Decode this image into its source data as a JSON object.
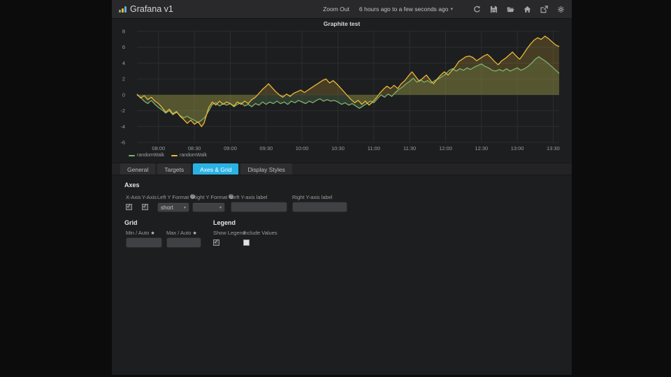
{
  "navbar": {
    "brand": "Grafana v1",
    "zoom_out_label": "Zoom Out",
    "time_range_label": "6 hours ago to a few seconds ago",
    "caret": "▾"
  },
  "panel": {
    "title": "Graphite test"
  },
  "chart_data": {
    "type": "line",
    "title": "Graphite test",
    "grid": true,
    "x_axis": {
      "tick_labels": [
        "08:00",
        "08:30",
        "09:00",
        "09:30",
        "10:00",
        "10:30",
        "11:00",
        "11:30",
        "12:00",
        "12:30",
        "13:00",
        "13:30"
      ],
      "tick_minutes": [
        18,
        48,
        78,
        108,
        138,
        168,
        198,
        228,
        258,
        288,
        318,
        348
      ],
      "range_minutes": [
        0,
        353
      ]
    },
    "y_axis": {
      "ticks": [
        8,
        6,
        4,
        2,
        0,
        -2,
        -4,
        -6
      ],
      "min": -6,
      "max": 8
    },
    "legend": {
      "position": "bottom-left",
      "entries": [
        "randomWalk",
        "randomWalk"
      ]
    },
    "series": [
      {
        "name": "randomWalk",
        "color": "#7eb26d",
        "fill": "rgba(126,178,109,0.2)",
        "points": [
          [
            0,
            0
          ],
          [
            3,
            -0.3
          ],
          [
            6,
            -0.8
          ],
          [
            9,
            -1.1
          ],
          [
            12,
            -0.7
          ],
          [
            15,
            -1.2
          ],
          [
            18,
            -1.6
          ],
          [
            21,
            -1.9
          ],
          [
            24,
            -2.3
          ],
          [
            27,
            -2.0
          ],
          [
            30,
            -2.5
          ],
          [
            33,
            -2.2
          ],
          [
            36,
            -2.6
          ],
          [
            39,
            -2.9
          ],
          [
            42,
            -2.7
          ],
          [
            45,
            -3.0
          ],
          [
            48,
            -3.2
          ],
          [
            51,
            -3.5
          ],
          [
            54,
            -3.2
          ],
          [
            57,
            -2.8
          ],
          [
            60,
            -2.0
          ],
          [
            63,
            -1.2
          ],
          [
            66,
            -1.0
          ],
          [
            69,
            -1.4
          ],
          [
            72,
            -1.1
          ],
          [
            75,
            -1.3
          ],
          [
            78,
            -1.1
          ],
          [
            81,
            -1.5
          ],
          [
            84,
            -1.2
          ],
          [
            87,
            -1.0
          ],
          [
            90,
            -1.4
          ],
          [
            93,
            -1.2
          ],
          [
            96,
            -1.5
          ],
          [
            99,
            -1.1
          ],
          [
            102,
            -1.3
          ],
          [
            105,
            -0.9
          ],
          [
            108,
            -1.2
          ],
          [
            111,
            -0.9
          ],
          [
            114,
            -1.1
          ],
          [
            117,
            -0.8
          ],
          [
            120,
            -1.1
          ],
          [
            123,
            -0.9
          ],
          [
            126,
            -1.2
          ],
          [
            129,
            -0.8
          ],
          [
            132,
            -1.0
          ],
          [
            135,
            -0.7
          ],
          [
            138,
            -0.9
          ],
          [
            141,
            -1.1
          ],
          [
            144,
            -0.8
          ],
          [
            147,
            -1.0
          ],
          [
            150,
            -0.7
          ],
          [
            153,
            -0.5
          ],
          [
            156,
            -0.8
          ],
          [
            159,
            -0.6
          ],
          [
            162,
            -0.8
          ],
          [
            165,
            -0.7
          ],
          [
            168,
            -0.9
          ],
          [
            171,
            -1.2
          ],
          [
            174,
            -1.0
          ],
          [
            177,
            -1.3
          ],
          [
            180,
            -1.1
          ],
          [
            183,
            -1.4
          ],
          [
            186,
            -1.7
          ],
          [
            189,
            -1.4
          ],
          [
            192,
            -1.1
          ],
          [
            195,
            -0.8
          ],
          [
            198,
            -1.0
          ],
          [
            201,
            -0.5
          ],
          [
            204,
            0.0
          ],
          [
            207,
            -0.3
          ],
          [
            210,
            0.1
          ],
          [
            213,
            -0.2
          ],
          [
            216,
            0.3
          ],
          [
            219,
            0.7
          ],
          [
            222,
            1.0
          ],
          [
            225,
            1.4
          ],
          [
            228,
            1.7
          ],
          [
            231,
            2.1
          ],
          [
            234,
            1.6
          ],
          [
            237,
            1.9
          ],
          [
            240,
            1.6
          ],
          [
            243,
            1.8
          ],
          [
            246,
            1.5
          ],
          [
            249,
            1.8
          ],
          [
            252,
            2.0
          ],
          [
            255,
            2.3
          ],
          [
            258,
            2.6
          ],
          [
            261,
            3.1
          ],
          [
            264,
            3.3
          ],
          [
            267,
            3.0
          ],
          [
            270,
            3.3
          ],
          [
            273,
            3.1
          ],
          [
            276,
            3.4
          ],
          [
            279,
            3.2
          ],
          [
            282,
            3.5
          ],
          [
            285,
            3.7
          ],
          [
            288,
            3.9
          ],
          [
            291,
            3.6
          ],
          [
            294,
            3.4
          ],
          [
            297,
            3.1
          ],
          [
            300,
            3.0
          ],
          [
            303,
            3.2
          ],
          [
            306,
            3.0
          ],
          [
            309,
            3.3
          ],
          [
            312,
            3.0
          ],
          [
            315,
            3.2
          ],
          [
            318,
            3.4
          ],
          [
            321,
            3.1
          ],
          [
            324,
            3.3
          ],
          [
            327,
            3.6
          ],
          [
            330,
            4.0
          ],
          [
            333,
            4.5
          ],
          [
            336,
            4.8
          ],
          [
            339,
            4.5
          ],
          [
            342,
            4.2
          ],
          [
            345,
            3.8
          ],
          [
            348,
            3.4
          ],
          [
            351,
            3.0
          ],
          [
            353,
            2.7
          ]
        ]
      },
      {
        "name": "randomWalk",
        "color": "#eab839",
        "fill": "rgba(234,184,57,0.2)",
        "points": [
          [
            0,
            0.1
          ],
          [
            3,
            -0.4
          ],
          [
            6,
            -0.1
          ],
          [
            9,
            -0.6
          ],
          [
            12,
            -0.3
          ],
          [
            15,
            -0.8
          ],
          [
            18,
            -1.1
          ],
          [
            21,
            -1.6
          ],
          [
            24,
            -2.2
          ],
          [
            27,
            -1.8
          ],
          [
            30,
            -2.4
          ],
          [
            33,
            -2.1
          ],
          [
            36,
            -2.7
          ],
          [
            39,
            -3.1
          ],
          [
            42,
            -3.6
          ],
          [
            45,
            -3.2
          ],
          [
            48,
            -3.7
          ],
          [
            51,
            -3.4
          ],
          [
            54,
            -4.0
          ],
          [
            56,
            -3.6
          ],
          [
            58,
            -2.6
          ],
          [
            60,
            -1.6
          ],
          [
            63,
            -0.9
          ],
          [
            66,
            -1.3
          ],
          [
            69,
            -0.8
          ],
          [
            72,
            -1.2
          ],
          [
            75,
            -0.9
          ],
          [
            78,
            -1.1
          ],
          [
            81,
            -1.4
          ],
          [
            84,
            -0.9
          ],
          [
            87,
            -1.2
          ],
          [
            90,
            -0.8
          ],
          [
            93,
            -1.1
          ],
          [
            96,
            -0.6
          ],
          [
            99,
            -0.3
          ],
          [
            102,
            0.2
          ],
          [
            105,
            0.7
          ],
          [
            108,
            1.1
          ],
          [
            110,
            1.4
          ],
          [
            113,
            0.9
          ],
          [
            116,
            0.4
          ],
          [
            119,
            0.0
          ],
          [
            122,
            -0.3
          ],
          [
            125,
            0.1
          ],
          [
            128,
            -0.2
          ],
          [
            131,
            0.2
          ],
          [
            134,
            0.4
          ],
          [
            137,
            0.6
          ],
          [
            140,
            0.3
          ],
          [
            143,
            0.6
          ],
          [
            146,
            0.9
          ],
          [
            149,
            1.2
          ],
          [
            152,
            1.5
          ],
          [
            155,
            1.8
          ],
          [
            158,
            2.0
          ],
          [
            161,
            1.5
          ],
          [
            164,
            1.8
          ],
          [
            167,
            1.4
          ],
          [
            170,
            0.9
          ],
          [
            173,
            0.4
          ],
          [
            176,
            -0.1
          ],
          [
            179,
            -0.6
          ],
          [
            182,
            -1.0
          ],
          [
            185,
            -0.7
          ],
          [
            188,
            -1.2
          ],
          [
            191,
            -0.8
          ],
          [
            194,
            -1.3
          ],
          [
            197,
            -0.9
          ],
          [
            200,
            -0.4
          ],
          [
            203,
            0.2
          ],
          [
            206,
            0.7
          ],
          [
            209,
            1.1
          ],
          [
            212,
            0.8
          ],
          [
            215,
            1.2
          ],
          [
            218,
            0.8
          ],
          [
            221,
            1.4
          ],
          [
            224,
            1.8
          ],
          [
            227,
            2.4
          ],
          [
            230,
            2.9
          ],
          [
            233,
            2.3
          ],
          [
            236,
            1.7
          ],
          [
            239,
            2.1
          ],
          [
            242,
            2.5
          ],
          [
            245,
            1.9
          ],
          [
            248,
            1.4
          ],
          [
            251,
            2.0
          ],
          [
            254,
            2.5
          ],
          [
            257,
            2.9
          ],
          [
            260,
            2.5
          ],
          [
            263,
            3.0
          ],
          [
            266,
            3.5
          ],
          [
            269,
            4.2
          ],
          [
            272,
            4.5
          ],
          [
            275,
            4.8
          ],
          [
            278,
            4.9
          ],
          [
            281,
            4.7
          ],
          [
            284,
            4.3
          ],
          [
            287,
            4.6
          ],
          [
            290,
            4.9
          ],
          [
            293,
            5.1
          ],
          [
            296,
            4.7
          ],
          [
            299,
            4.2
          ],
          [
            302,
            3.8
          ],
          [
            305,
            4.3
          ],
          [
            308,
            4.6
          ],
          [
            311,
            5.0
          ],
          [
            314,
            5.4
          ],
          [
            317,
            4.9
          ],
          [
            320,
            4.5
          ],
          [
            323,
            5.1
          ],
          [
            326,
            5.8
          ],
          [
            329,
            6.4
          ],
          [
            332,
            6.9
          ],
          [
            335,
            7.2
          ],
          [
            338,
            7.0
          ],
          [
            341,
            7.4
          ],
          [
            344,
            7.1
          ],
          [
            347,
            6.7
          ],
          [
            350,
            6.3
          ],
          [
            353,
            6.1
          ]
        ]
      }
    ]
  },
  "editor": {
    "tabs": [
      {
        "label": "General",
        "active": false
      },
      {
        "label": "Targets",
        "active": false
      },
      {
        "label": "Axes & Grid",
        "active": true
      },
      {
        "label": "Display Styles",
        "active": false
      }
    ],
    "axes_section": {
      "heading": "Axes",
      "x_axis": {
        "label": "X-Axis",
        "checked": true
      },
      "y_axis": {
        "label": "Y-Axis",
        "checked": true
      },
      "left_y_format": {
        "label": "Left Y Format",
        "help_icon": "?",
        "value": "short"
      },
      "right_y_format": {
        "label": "Right Y Format",
        "help_icon": "?",
        "value": ""
      },
      "left_y_label": {
        "label": "Left Y-axis label",
        "value": ""
      },
      "right_y_label": {
        "label": "Right Y-axis label",
        "value": ""
      }
    },
    "grid_section": {
      "heading": "Grid",
      "min": {
        "label": "Min / Auto",
        "star_icon": "★",
        "value": ""
      },
      "max": {
        "label": "Max / Auto",
        "star_icon": "★",
        "value": ""
      }
    },
    "legend_section": {
      "heading": "Legend",
      "show_legend": {
        "label": "Show Legend",
        "checked": true
      },
      "include_values": {
        "label": "Include Values",
        "checked": false
      }
    }
  }
}
